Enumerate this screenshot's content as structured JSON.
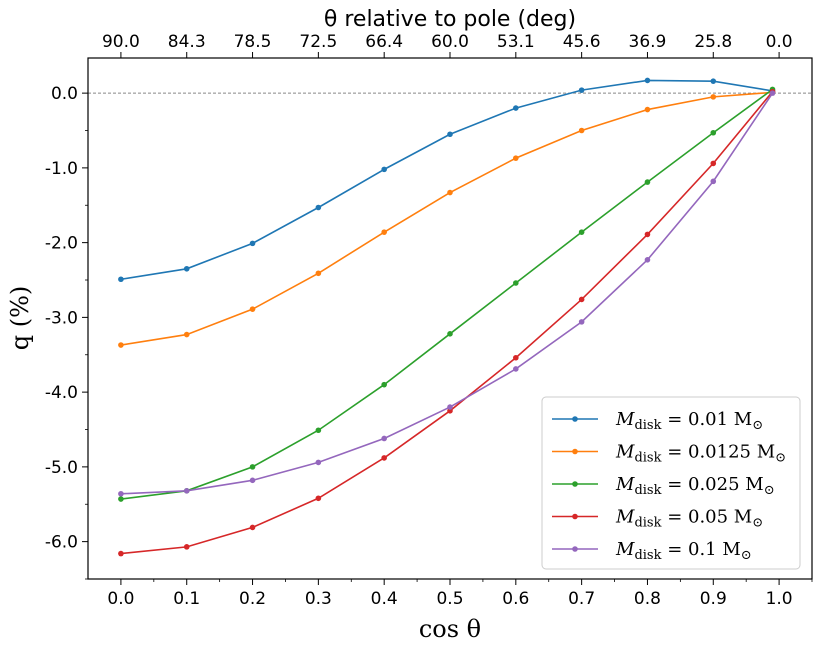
{
  "chart_data": {
    "type": "line",
    "top_axis_title": "θ relative to pole (deg)",
    "xlabel": "cos θ",
    "ylabel": "q (%)",
    "xlim": [
      -0.05,
      1.05
    ],
    "ylim": [
      -6.5,
      0.47
    ],
    "x_ticks": [
      0.0,
      0.1,
      0.2,
      0.3,
      0.4,
      0.5,
      0.6,
      0.7,
      0.8,
      0.9,
      1.0
    ],
    "x_tick_labels": [
      "0.0",
      "0.1",
      "0.2",
      "0.3",
      "0.4",
      "0.5",
      "0.6",
      "0.7",
      "0.8",
      "0.9",
      "1.0"
    ],
    "y_ticks": [
      0,
      -1,
      -2,
      -3,
      -4,
      -5,
      -6
    ],
    "y_tick_labels": [
      "0.0",
      "-1.0",
      "-2.0",
      "-3.0",
      "-4.0",
      "-5.0",
      "-6.0"
    ],
    "top_ticks_x": [
      0.0,
      0.1,
      0.2,
      0.3,
      0.4,
      0.5,
      0.6,
      0.7,
      0.8,
      0.9,
      1.0
    ],
    "top_tick_labels": [
      "90.0",
      "84.3",
      "78.5",
      "72.5",
      "66.4",
      "60.0",
      "53.1",
      "45.6",
      "36.9",
      "25.8",
      "0.0"
    ],
    "reference_line_y": 0,
    "legend_position": "lower-right",
    "x": [
      0.0,
      0.1,
      0.2,
      0.3,
      0.4,
      0.5,
      0.6,
      0.7,
      0.8,
      0.9,
      0.99
    ],
    "series": [
      {
        "name": "M_disk = 0.01 M_⊙",
        "legend_base": "M",
        "legend_sub": "disk",
        "legend_value": " = 0.01 M",
        "legend_sun": "⊙",
        "color": "#1f77b4",
        "values": [
          -2.49,
          -2.35,
          -2.01,
          -1.53,
          -1.02,
          -0.55,
          -0.2,
          0.04,
          0.17,
          0.16,
          0.03
        ]
      },
      {
        "name": "M_disk = 0.0125 M_⊙",
        "legend_base": "M",
        "legend_sub": "disk",
        "legend_value": " = 0.0125 M",
        "legend_sun": "⊙",
        "color": "#ff7f0e",
        "values": [
          -3.37,
          -3.23,
          -2.89,
          -2.41,
          -1.86,
          -1.33,
          -0.87,
          -0.5,
          -0.22,
          -0.05,
          0.01
        ]
      },
      {
        "name": "M_disk = 0.025 M_⊙",
        "legend_base": "M",
        "legend_sub": "disk",
        "legend_value": " = 0.025 M",
        "legend_sun": "⊙",
        "color": "#2ca02c",
        "values": [
          -5.43,
          -5.32,
          -5.0,
          -4.51,
          -3.9,
          -3.22,
          -2.54,
          -1.86,
          -1.19,
          -0.53,
          0.05
        ]
      },
      {
        "name": "M_disk = 0.05 M_⊙",
        "legend_base": "M",
        "legend_sub": "disk",
        "legend_value": " = 0.05 M",
        "legend_sun": "⊙",
        "color": "#d62728",
        "values": [
          -6.16,
          -6.07,
          -5.81,
          -5.42,
          -4.88,
          -4.25,
          -3.54,
          -2.76,
          -1.89,
          -0.94,
          0.02
        ]
      },
      {
        "name": "M_disk = 0.1 M_⊙",
        "legend_base": "M",
        "legend_sub": "disk",
        "legend_value": " = 0.1 M",
        "legend_sun": "⊙",
        "color": "#9467bd",
        "values": [
          -5.36,
          -5.32,
          -5.18,
          -4.94,
          -4.62,
          -4.2,
          -3.69,
          -3.06,
          -2.23,
          -1.18,
          0.0
        ]
      }
    ]
  }
}
